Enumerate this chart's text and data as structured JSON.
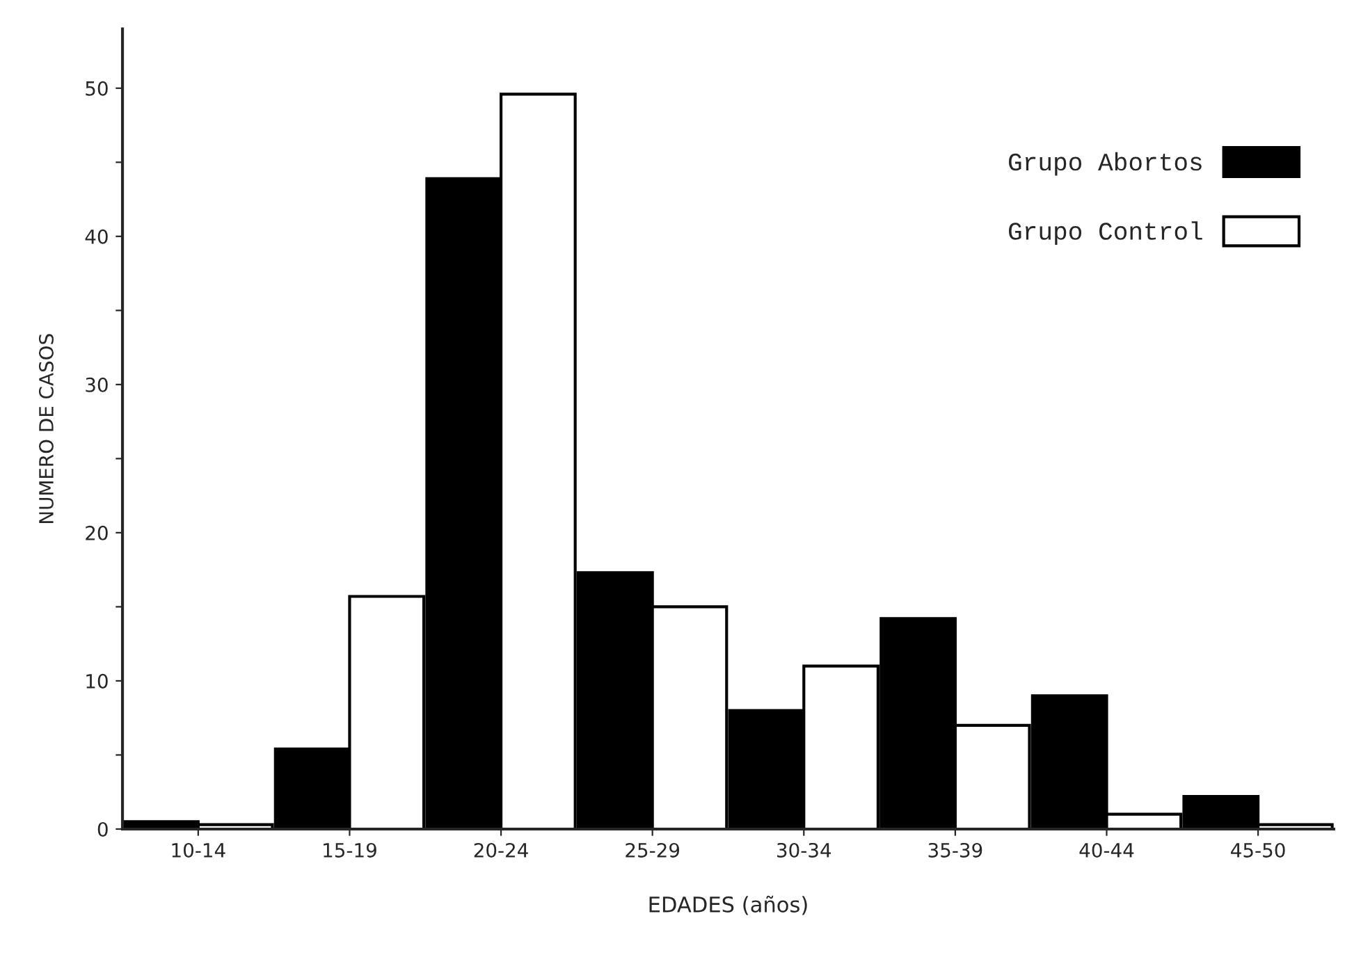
{
  "chart_data": {
    "type": "bar",
    "xlabel": "EDADES (años)",
    "ylabel": "NUMERO DE CASOS",
    "categories": [
      "10-14",
      "15-19",
      "20-24",
      "25-29",
      "30-34",
      "35-39",
      "40-44",
      "45-50"
    ],
    "series": [
      {
        "name": "Grupo Abortos",
        "color": "#000000",
        "values": [
          0.5,
          5.4,
          43.9,
          17.3,
          8.0,
          14.2,
          9.0,
          2.2
        ]
      },
      {
        "name": "Grupo Control",
        "color": "#ffffff",
        "values": [
          0.3,
          15.7,
          49.6,
          15.0,
          11.0,
          7.0,
          1.0,
          0.3
        ]
      }
    ],
    "ylim": [
      0,
      54
    ],
    "yticks": [
      0,
      {
        "value": 5,
        "label": null
      },
      10,
      {
        "value": 15,
        "label": null
      },
      20,
      {
        "value": 25,
        "label": null
      },
      30,
      {
        "value": 35,
        "label": null
      },
      40,
      {
        "value": 45,
        "label": null
      },
      50
    ],
    "grid": false,
    "legend": "top right"
  }
}
